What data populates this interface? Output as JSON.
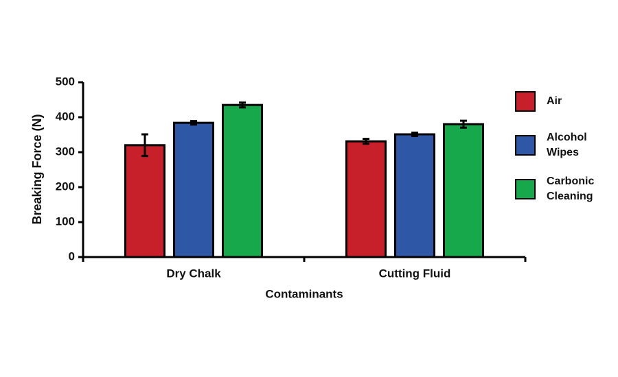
{
  "chart_data": {
    "type": "bar",
    "x_label": "Contaminants",
    "y_label": "Breaking Force (N)",
    "categories": [
      "Dry Chalk",
      "Cutting Fluid"
    ],
    "series": [
      {
        "name": "Air",
        "color": "#c8202a",
        "values": [
          320,
          331
        ],
        "errors": [
          31,
          7
        ]
      },
      {
        "name": "Alcohol Wipes",
        "color": "#2e58a6",
        "values": [
          384,
          351
        ],
        "errors": [
          5,
          5
        ]
      },
      {
        "name": "Carbonic Cleaning",
        "color": "#18a84c",
        "values": [
          435,
          380
        ],
        "errors": [
          7,
          10
        ]
      }
    ],
    "ylim": [
      0,
      500
    ],
    "yticks": [
      0,
      100,
      200,
      300,
      400,
      500
    ]
  }
}
